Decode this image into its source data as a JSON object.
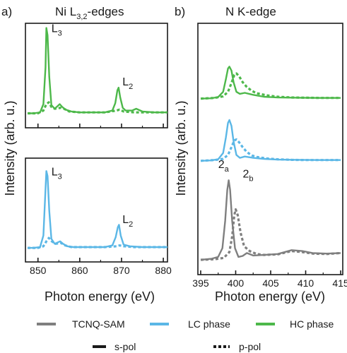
{
  "colors": {
    "tcnq": "#7f7f7f",
    "lc": "#5bb7e6",
    "hc": "#4db84a",
    "axis": "#1a1a1a"
  },
  "legend": {
    "series": [
      "TCNQ-SAM",
      "LC phase",
      "HC phase"
    ],
    "styles": [
      "s-pol",
      "p-pol"
    ]
  },
  "chart_data": [
    {
      "type": "line",
      "panel_label": "a)",
      "title": "Ni L",
      "title_sub": "3,2",
      "title_suffix": "-edges",
      "xlabel": "Photon energy (eV)",
      "ylabel": "Intensity (arb. u.)",
      "xlim": [
        847,
        881
      ],
      "xticks": [
        850,
        860,
        870,
        880
      ],
      "subplots": [
        {
          "name": "HC phase",
          "color": "hc",
          "show_xtick_labels": false,
          "peak_labels": [
            {
              "main": "L",
              "sub": "3",
              "x": 852.2,
              "y": 0.98
            },
            {
              "main": "L",
              "sub": "2",
              "x": 869.2,
              "y": 0.4
            }
          ],
          "series": [
            {
              "pol": "s-pol",
              "x": [
                847.5,
                849,
                850.5,
                851.3,
                851.8,
                852.0,
                852.3,
                852.7,
                853.2,
                854,
                855.2,
                855.8,
                856.6,
                858,
                860,
                863,
                866,
                867.8,
                868.5,
                869.0,
                869.3,
                869.7,
                870.3,
                871,
                872.5,
                873.5,
                875,
                878,
                881
              ],
              "y": [
                0.05,
                0.05,
                0.06,
                0.15,
                0.55,
                0.98,
                0.9,
                0.45,
                0.14,
                0.1,
                0.15,
                0.12,
                0.09,
                0.07,
                0.06,
                0.06,
                0.06,
                0.08,
                0.16,
                0.3,
                0.33,
                0.22,
                0.11,
                0.08,
                0.08,
                0.1,
                0.07,
                0.06,
                0.06
              ]
            },
            {
              "pol": "p-pol",
              "x": [
                847.5,
                850,
                851.3,
                852.0,
                852.6,
                853.2,
                854,
                855.4,
                856.2,
                857.5,
                860,
                866,
                868.8,
                869.5,
                870.5,
                873,
                881
              ],
              "y": [
                0.05,
                0.05,
                0.08,
                0.15,
                0.17,
                0.12,
                0.1,
                0.11,
                0.1,
                0.07,
                0.06,
                0.06,
                0.08,
                0.09,
                0.07,
                0.06,
                0.06
              ]
            }
          ]
        },
        {
          "name": "LC phase",
          "color": "lc",
          "show_xtick_labels": true,
          "peak_labels": [
            {
              "main": "L",
              "sub": "3",
              "x": 852.2,
              "y": 0.98
            },
            {
              "main": "L",
              "sub": "2",
              "x": 869.2,
              "y": 0.4
            }
          ],
          "series": [
            {
              "pol": "s-pol",
              "x": [
                847.5,
                849,
                850.5,
                851.3,
                851.7,
                852.0,
                852.3,
                852.7,
                853.2,
                854,
                855.3,
                856,
                857,
                858.5,
                861,
                866,
                867.8,
                868.6,
                869.1,
                869.4,
                869.8,
                870.5,
                872,
                875,
                878,
                881
              ],
              "y": [
                0.05,
                0.05,
                0.06,
                0.2,
                0.65,
                0.98,
                0.92,
                0.5,
                0.16,
                0.1,
                0.13,
                0.1,
                0.07,
                0.06,
                0.06,
                0.06,
                0.08,
                0.18,
                0.3,
                0.33,
                0.2,
                0.09,
                0.07,
                0.06,
                0.06,
                0.06
              ]
            },
            {
              "pol": "p-pol",
              "x": [
                847.5,
                850,
                851.3,
                852.0,
                852.6,
                853.3,
                854.2,
                855.5,
                856.5,
                858,
                861,
                866,
                868.8,
                869.5,
                870.5,
                873,
                881
              ],
              "y": [
                0.05,
                0.05,
                0.07,
                0.13,
                0.17,
                0.13,
                0.1,
                0.11,
                0.08,
                0.06,
                0.06,
                0.06,
                0.07,
                0.08,
                0.07,
                0.06,
                0.06
              ]
            }
          ]
        }
      ]
    },
    {
      "type": "line",
      "panel_label": "b)",
      "title": "N K-edge",
      "xlabel": "Photon energy (eV)",
      "ylabel": "Intensity (arb. u.)",
      "xlim": [
        394.6,
        415.3
      ],
      "xticks": [
        395,
        400,
        405,
        410,
        415
      ],
      "peak_labels": [
        {
          "main": "2",
          "sub": "a",
          "x": 396.9,
          "y": 4.95
        },
        {
          "main": "2",
          "sub": "b",
          "x": 400.4,
          "y": 4.45
        }
      ],
      "series": [
        {
          "name": "HC phase",
          "color": "hc",
          "pol": "s-pol",
          "offset": 8.3,
          "x": [
            395,
            396.5,
            397.5,
            398.2,
            398.6,
            398.9,
            399.1,
            399.4,
            399.7,
            400.1,
            400.6,
            401.3,
            402.5,
            404,
            406,
            409,
            412,
            415
          ],
          "y": [
            0.0,
            0.02,
            0.08,
            0.35,
            1.0,
            1.55,
            1.65,
            1.45,
            0.85,
            0.35,
            0.25,
            0.3,
            0.2,
            0.1,
            0.06,
            0.05,
            0.04,
            0.04
          ]
        },
        {
          "name": "HC phase",
          "color": "hc",
          "pol": "p-pol",
          "offset": 8.3,
          "x": [
            395,
            397,
            398.2,
            398.9,
            399.4,
            399.8,
            400.1,
            400.5,
            401.0,
            401.6,
            402.3,
            403,
            404.5,
            406,
            408,
            410,
            412,
            415
          ],
          "y": [
            0.0,
            0.04,
            0.12,
            0.35,
            0.8,
            1.22,
            1.3,
            1.15,
            0.85,
            0.6,
            0.4,
            0.28,
            0.17,
            0.1,
            0.06,
            0.05,
            0.04,
            0.04
          ]
        },
        {
          "name": "LC phase",
          "color": "lc",
          "pol": "s-pol",
          "offset": 5.1,
          "x": [
            395,
            396.5,
            397.5,
            398.2,
            398.6,
            398.9,
            399.1,
            399.4,
            399.7,
            400.1,
            400.6,
            401.3,
            402.5,
            404,
            406,
            409,
            412,
            415
          ],
          "y": [
            0.0,
            0.02,
            0.08,
            0.4,
            1.2,
            1.95,
            2.1,
            1.8,
            1.0,
            0.3,
            0.15,
            0.22,
            0.15,
            0.1,
            0.06,
            0.05,
            0.04,
            0.04
          ]
        },
        {
          "name": "LC phase",
          "color": "lc",
          "pol": "p-pol",
          "offset": 5.1,
          "x": [
            395,
            397,
            398.2,
            398.9,
            399.4,
            399.8,
            400.1,
            400.5,
            401.0,
            401.6,
            402.3,
            403,
            404.5,
            406,
            408,
            410,
            412,
            415
          ],
          "y": [
            0.0,
            0.04,
            0.1,
            0.3,
            0.7,
            1.05,
            1.1,
            0.95,
            0.7,
            0.45,
            0.28,
            0.2,
            0.12,
            0.08,
            0.05,
            0.04,
            0.04,
            0.04
          ]
        },
        {
          "name": "TCNQ-SAM",
          "color": "tcnq",
          "pol": "s-pol",
          "offset": 0.0,
          "x": [
            395,
            396.5,
            397.5,
            398.1,
            398.5,
            398.8,
            399.0,
            399.2,
            399.5,
            399.9,
            400.4,
            401.0,
            401.6,
            402.5,
            404,
            406,
            408,
            409.5,
            411,
            413,
            415
          ],
          "y": [
            0.0,
            0.05,
            0.15,
            0.6,
            2.0,
            3.6,
            4.1,
            3.6,
            2.0,
            0.6,
            0.15,
            0.2,
            0.35,
            0.22,
            0.25,
            0.3,
            0.5,
            0.45,
            0.35,
            0.32,
            0.35
          ]
        },
        {
          "name": "TCNQ-SAM",
          "color": "tcnq",
          "pol": "p-pol",
          "offset": 0.0,
          "x": [
            395,
            397,
            398.3,
            399.1,
            399.5,
            399.8,
            400.0,
            400.3,
            400.7,
            401.2,
            402.0,
            403,
            404,
            406,
            408,
            409.5,
            411,
            413,
            415
          ],
          "y": [
            0.0,
            0.03,
            0.1,
            0.4,
            1.2,
            2.3,
            2.6,
            2.3,
            1.4,
            0.7,
            0.45,
            0.3,
            0.25,
            0.28,
            0.45,
            0.4,
            0.32,
            0.3,
            0.35
          ]
        }
      ]
    }
  ]
}
